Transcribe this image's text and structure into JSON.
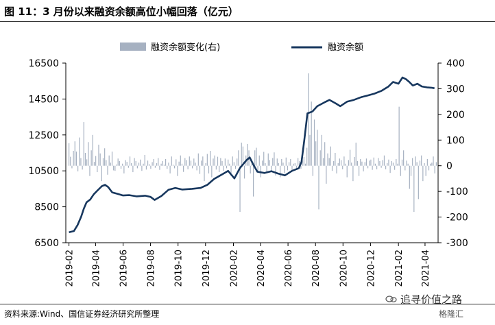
{
  "title": "图 11：3 月份以来融资余额高位小幅回落（亿元）",
  "source": "资料来源:Wind、国信证券经济研究所整理",
  "watermark": {
    "text": "追寻价值之路",
    "sub": "格隆汇"
  },
  "colors": {
    "line": "#17375e",
    "bars": "#a6b1c1",
    "axis": "#000000"
  },
  "chart_data": {
    "type": "line+bar",
    "x_tick_labels": [
      "2019-02",
      "2019-04",
      "2019-06",
      "2019-08",
      "2019-10",
      "2019-12",
      "2020-02",
      "2020-04",
      "2020-06",
      "2020-08",
      "2020-10",
      "2020-12",
      "2021-02",
      "2021-04"
    ],
    "left_axis": {
      "ticks": [
        "6500",
        "8500",
        "10500",
        "12500",
        "14500",
        "16500"
      ],
      "range": [
        6500,
        16500
      ]
    },
    "right_axis": {
      "ticks": [
        "-300",
        "-200",
        "-100",
        "0",
        "100",
        "200",
        "300",
        "400"
      ],
      "range": [
        -300,
        400
      ]
    },
    "grid": false,
    "legend_position": "top",
    "series": [
      {
        "name": "融资余额变化(右)",
        "kind": "bar",
        "axis": "right",
        "values": [
          88,
          35,
          -10,
          58,
          95,
          55,
          -22,
          110,
          30,
          -15,
          170,
          50,
          25,
          92,
          -40,
          60,
          120,
          15,
          38,
          -25,
          82,
          48,
          -60,
          30,
          68,
          22,
          -35,
          40,
          12,
          55,
          -18,
          -20,
          5,
          28,
          18,
          -12,
          8,
          -30,
          22,
          15,
          -8,
          36,
          10,
          -25,
          30,
          18,
          -10,
          12,
          24,
          -20,
          8,
          42,
          -15,
          20,
          6,
          -12,
          14,
          26,
          -8,
          10,
          30,
          -16,
          8,
          18,
          4,
          26,
          -12,
          12,
          -30,
          36,
          4,
          -10,
          25,
          -40,
          16,
          40,
          8,
          -24,
          30,
          22,
          -14,
          36,
          20,
          -10,
          28,
          12,
          -18,
          48,
          -32,
          20,
          36,
          -60,
          10,
          46,
          -30,
          58,
          -45,
          28,
          40,
          -15,
          35,
          -25,
          30,
          18,
          -20,
          28,
          -10,
          24,
          8,
          -28,
          36,
          14,
          -12,
          28,
          60,
          -180,
          90,
          75,
          -50,
          40,
          85,
          60,
          -30,
          18,
          -120,
          60,
          70,
          -25,
          40,
          -45,
          20,
          54,
          10,
          -28,
          48,
          22,
          -20,
          30,
          52,
          -38,
          28,
          10,
          -45,
          26,
          12,
          -30,
          32,
          -18,
          14,
          26,
          -22,
          8,
          10,
          -16,
          30,
          18,
          -12,
          20,
          34,
          8,
          70,
          360,
          120,
          250,
          -40,
          180,
          95,
          140,
          -170,
          60,
          120,
          30,
          92,
          -70,
          48,
          30,
          75,
          -20,
          18,
          50,
          -30,
          10,
          28,
          22,
          -14,
          36,
          8,
          -45,
          22,
          62,
          12,
          -60,
          34,
          90,
          18,
          -40,
          26,
          16,
          -22,
          14,
          28,
          -10,
          20,
          24,
          -16,
          32,
          8,
          -14,
          30,
          18,
          -8,
          22,
          40,
          -14,
          10,
          24,
          -28,
          18,
          12,
          -16,
          26,
          8,
          230,
          -40,
          24,
          60,
          -18,
          20,
          8,
          -90,
          -40,
          30,
          -180,
          36,
          14,
          -130,
          20,
          40,
          -60,
          10,
          -40,
          26,
          -18,
          8,
          12,
          36,
          -30,
          14
        ]
      },
      {
        "name": "融资余额",
        "kind": "line",
        "axis": "left",
        "points": [
          [
            "2019-02-01",
            7080
          ],
          [
            "2019-02-12",
            7150
          ],
          [
            "2019-02-20",
            7480
          ],
          [
            "2019-02-28",
            7950
          ],
          [
            "2019-03-06",
            8400
          ],
          [
            "2019-03-12",
            8750
          ],
          [
            "2019-03-20",
            8900
          ],
          [
            "2019-03-28",
            9200
          ],
          [
            "2019-04-05",
            9400
          ],
          [
            "2019-04-15",
            9650
          ],
          [
            "2019-04-22",
            9720
          ],
          [
            "2019-04-29",
            9600
          ],
          [
            "2019-05-08",
            9300
          ],
          [
            "2019-05-20",
            9220
          ],
          [
            "2019-06-01",
            9130
          ],
          [
            "2019-06-15",
            9150
          ],
          [
            "2019-07-01",
            9080
          ],
          [
            "2019-07-20",
            9120
          ],
          [
            "2019-08-01",
            9050
          ],
          [
            "2019-08-10",
            8880
          ],
          [
            "2019-08-25",
            9100
          ],
          [
            "2019-09-10",
            9450
          ],
          [
            "2019-09-25",
            9550
          ],
          [
            "2019-10-10",
            9460
          ],
          [
            "2019-11-01",
            9500
          ],
          [
            "2019-11-20",
            9550
          ],
          [
            "2019-12-05",
            9720
          ],
          [
            "2019-12-20",
            10050
          ],
          [
            "2020-01-10",
            10350
          ],
          [
            "2020-01-20",
            10500
          ],
          [
            "2020-02-03",
            10080
          ],
          [
            "2020-02-15",
            10650
          ],
          [
            "2020-03-01",
            11100
          ],
          [
            "2020-03-08",
            11250
          ],
          [
            "2020-03-16",
            10850
          ],
          [
            "2020-03-25",
            10450
          ],
          [
            "2020-04-10",
            10380
          ],
          [
            "2020-04-25",
            10480
          ],
          [
            "2020-05-10",
            10350
          ],
          [
            "2020-05-25",
            10250
          ],
          [
            "2020-06-10",
            10500
          ],
          [
            "2020-06-25",
            10650
          ],
          [
            "2020-07-01",
            11000
          ],
          [
            "2020-07-07",
            12200
          ],
          [
            "2020-07-14",
            13700
          ],
          [
            "2020-07-25",
            13800
          ],
          [
            "2020-08-05",
            14100
          ],
          [
            "2020-08-20",
            14300
          ],
          [
            "2020-09-01",
            14450
          ],
          [
            "2020-09-15",
            14250
          ],
          [
            "2020-09-25",
            14100
          ],
          [
            "2020-10-10",
            14350
          ],
          [
            "2020-10-25",
            14450
          ],
          [
            "2020-11-10",
            14600
          ],
          [
            "2020-11-25",
            14700
          ],
          [
            "2020-12-10",
            14800
          ],
          [
            "2020-12-25",
            14950
          ],
          [
            "2021-01-10",
            15200
          ],
          [
            "2021-01-20",
            15450
          ],
          [
            "2021-02-01",
            15350
          ],
          [
            "2021-02-10",
            15700
          ],
          [
            "2021-02-18",
            15600
          ],
          [
            "2021-02-25",
            15450
          ],
          [
            "2021-03-05",
            15250
          ],
          [
            "2021-03-15",
            15350
          ],
          [
            "2021-03-25",
            15200
          ],
          [
            "2021-04-05",
            15150
          ],
          [
            "2021-04-15",
            15130
          ],
          [
            "2021-04-22",
            15100
          ]
        ]
      }
    ]
  }
}
